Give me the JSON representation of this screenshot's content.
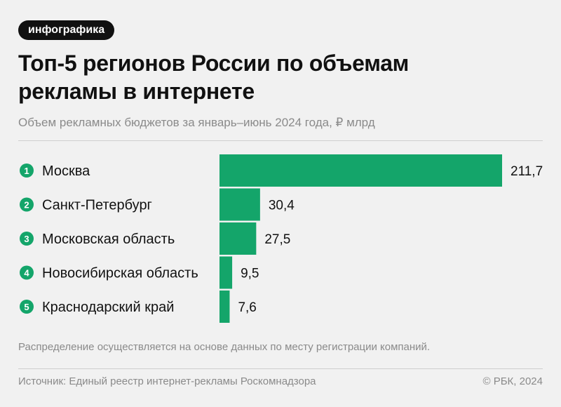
{
  "tag": "инфографика",
  "title_line1": "Топ-5 регионов России по объемам",
  "title_line2": "рекламы в интернете",
  "subtitle": "Объем рекламных бюджетов за январь–июнь 2024 года, ₽ млрд",
  "note": "Распределение осуществляется на основе данных по месту регистрации компаний.",
  "source": "Источник: Единый реестр интернет-рекламы Роскомнадзора",
  "copyright": "© РБК, 2024",
  "colors": {
    "bar": "#14a56a",
    "badge": "#14a56a",
    "background": "#f1f1f1"
  },
  "chart_data": {
    "type": "bar",
    "orientation": "horizontal",
    "categories": [
      "Москва",
      "Санкт-Петербург",
      "Московская область",
      "Новосибирская область",
      "Краснодарский край"
    ],
    "ranks": [
      "1",
      "2",
      "3",
      "4",
      "5"
    ],
    "values": [
      211.7,
      30.4,
      27.5,
      9.5,
      7.6
    ],
    "value_labels": [
      "211,7",
      "30,4",
      "27,5",
      "9,5",
      "7,6"
    ],
    "title": "Топ-5 регионов России по объемам рекламы в интернете",
    "xlabel": "",
    "ylabel": "",
    "xlim": [
      0,
      211.7
    ],
    "grid": false,
    "legend": "none"
  }
}
